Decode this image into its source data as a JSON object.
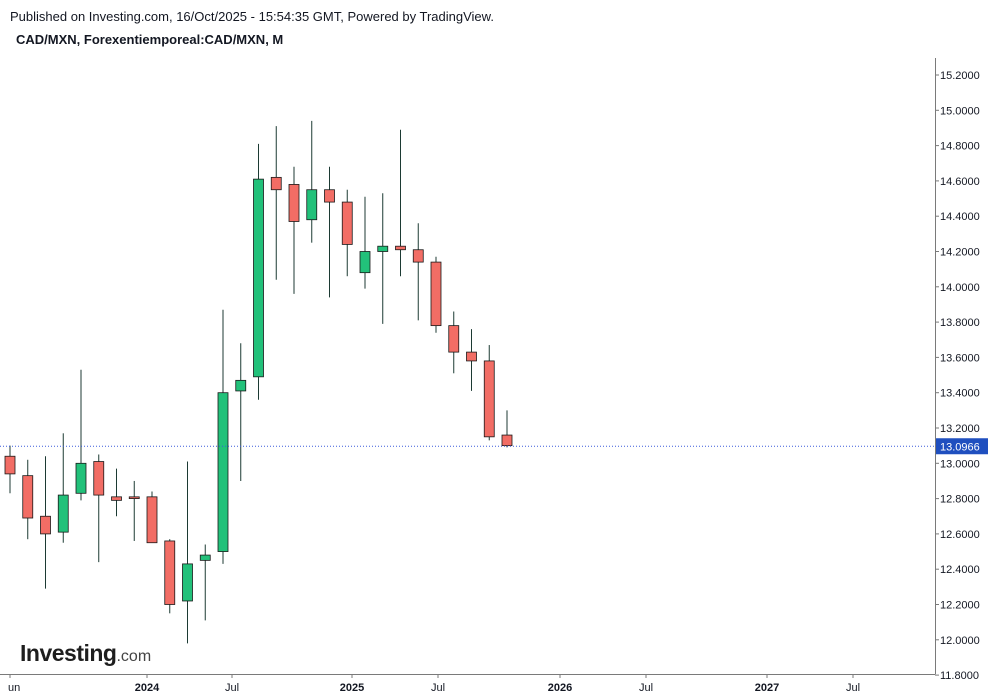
{
  "header": {
    "published": "Published on Investing.com, 16/Oct/2025 - 15:54:35 GMT, Powered by TradingView.",
    "symbol": "CAD/MXN, Forexentiemporeal:CAD/MXN, M"
  },
  "logo": {
    "brand": "Investing",
    "suffix": ".com"
  },
  "colors": {
    "up": "#22c17a",
    "down": "#f26d65",
    "wick": "#1c3a33",
    "last_line": "#3b5bdb",
    "last_badge": "#1f4fbf"
  },
  "chart_data": {
    "type": "candlestick",
    "timeframe": "M",
    "y_range": [
      11.8,
      15.3
    ],
    "y_ticks": [
      "15.2000",
      "15.0000",
      "14.8000",
      "14.6000",
      "14.4000",
      "14.2000",
      "14.0000",
      "13.8000",
      "13.6000",
      "13.4000",
      "13.2000",
      "13.0000",
      "12.8000",
      "12.6000",
      "12.4000",
      "12.2000",
      "12.0000",
      "11.8000"
    ],
    "x_ticks": [
      {
        "label": "un",
        "bold": false
      },
      {
        "label": "2024",
        "bold": true
      },
      {
        "label": "Jul",
        "bold": false
      },
      {
        "label": "2025",
        "bold": true
      },
      {
        "label": "Jul",
        "bold": false
      },
      {
        "label": "2026",
        "bold": true
      },
      {
        "label": "Jul",
        "bold": false
      },
      {
        "label": "2027",
        "bold": true
      },
      {
        "label": "Jul",
        "bold": false
      }
    ],
    "last_value": "13.0966",
    "last_price": 13.0966,
    "candles": [
      {
        "o": 13.04,
        "h": 13.1,
        "l": 12.83,
        "c": 12.94
      },
      {
        "o": 12.93,
        "h": 13.02,
        "l": 12.57,
        "c": 12.69
      },
      {
        "o": 12.7,
        "h": 13.04,
        "l": 12.29,
        "c": 12.6
      },
      {
        "o": 12.61,
        "h": 13.17,
        "l": 12.55,
        "c": 12.82
      },
      {
        "o": 12.83,
        "h": 13.53,
        "l": 12.79,
        "c": 13.0
      },
      {
        "o": 13.01,
        "h": 13.05,
        "l": 12.44,
        "c": 12.82
      },
      {
        "o": 12.81,
        "h": 12.97,
        "l": 12.7,
        "c": 12.79
      },
      {
        "o": 12.81,
        "h": 12.9,
        "l": 12.56,
        "c": 12.8
      },
      {
        "o": 12.81,
        "h": 12.84,
        "l": 12.55,
        "c": 12.55
      },
      {
        "o": 12.56,
        "h": 12.57,
        "l": 12.15,
        "c": 12.2
      },
      {
        "o": 12.22,
        "h": 13.01,
        "l": 11.98,
        "c": 12.43
      },
      {
        "o": 12.45,
        "h": 12.54,
        "l": 12.11,
        "c": 12.48
      },
      {
        "o": 12.5,
        "h": 13.87,
        "l": 12.43,
        "c": 13.4
      },
      {
        "o": 13.41,
        "h": 13.68,
        "l": 12.9,
        "c": 13.47
      },
      {
        "o": 13.49,
        "h": 14.81,
        "l": 13.36,
        "c": 14.61
      },
      {
        "o": 14.62,
        "h": 14.91,
        "l": 14.04,
        "c": 14.55
      },
      {
        "o": 14.58,
        "h": 14.68,
        "l": 13.96,
        "c": 14.37
      },
      {
        "o": 14.38,
        "h": 14.94,
        "l": 14.25,
        "c": 14.55
      },
      {
        "o": 14.55,
        "h": 14.68,
        "l": 13.94,
        "c": 14.48
      },
      {
        "o": 14.48,
        "h": 14.55,
        "l": 14.06,
        "c": 14.24
      },
      {
        "o": 14.08,
        "h": 14.51,
        "l": 13.99,
        "c": 14.2
      },
      {
        "o": 14.2,
        "h": 14.53,
        "l": 13.79,
        "c": 14.23
      },
      {
        "o": 14.23,
        "h": 14.89,
        "l": 14.06,
        "c": 14.21
      },
      {
        "o": 14.21,
        "h": 14.36,
        "l": 13.81,
        "c": 14.14
      },
      {
        "o": 14.14,
        "h": 14.17,
        "l": 13.74,
        "c": 13.78
      },
      {
        "o": 13.78,
        "h": 13.86,
        "l": 13.51,
        "c": 13.63
      },
      {
        "o": 13.63,
        "h": 13.76,
        "l": 13.41,
        "c": 13.58
      },
      {
        "o": 13.58,
        "h": 13.67,
        "l": 13.13,
        "c": 13.15
      },
      {
        "o": 13.16,
        "h": 13.3,
        "l": 13.09,
        "c": 13.1
      }
    ]
  }
}
